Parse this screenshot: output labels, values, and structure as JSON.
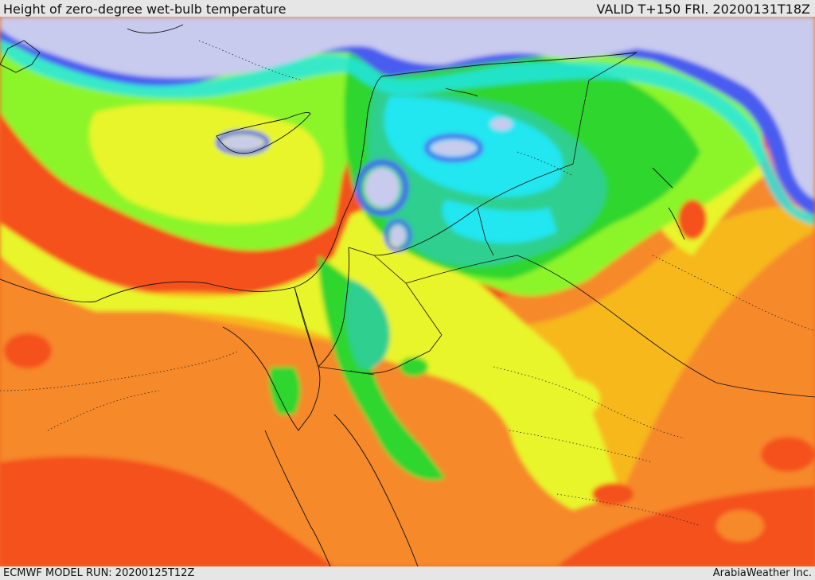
{
  "header": {
    "title": "Height of zero-degree wet-bulb temperature",
    "valid": "VALID T+150 FRI. 20200131T18Z"
  },
  "footer": {
    "model_run": "ECMWF MODEL RUN: 20200125T12Z",
    "credit": "ArabiaWeather Inc."
  },
  "colors": {
    "lavender": "#c8cbee",
    "blue": "#4a5cf0",
    "cyan": "#22e6f0",
    "teal": "#2ecf8f",
    "green": "#2fd62f",
    "light_green": "#8cf52a",
    "yellow": "#e8f52a",
    "orange_light": "#f7b81c",
    "orange": "#f6892b",
    "red_orange": "#f4511c"
  }
}
